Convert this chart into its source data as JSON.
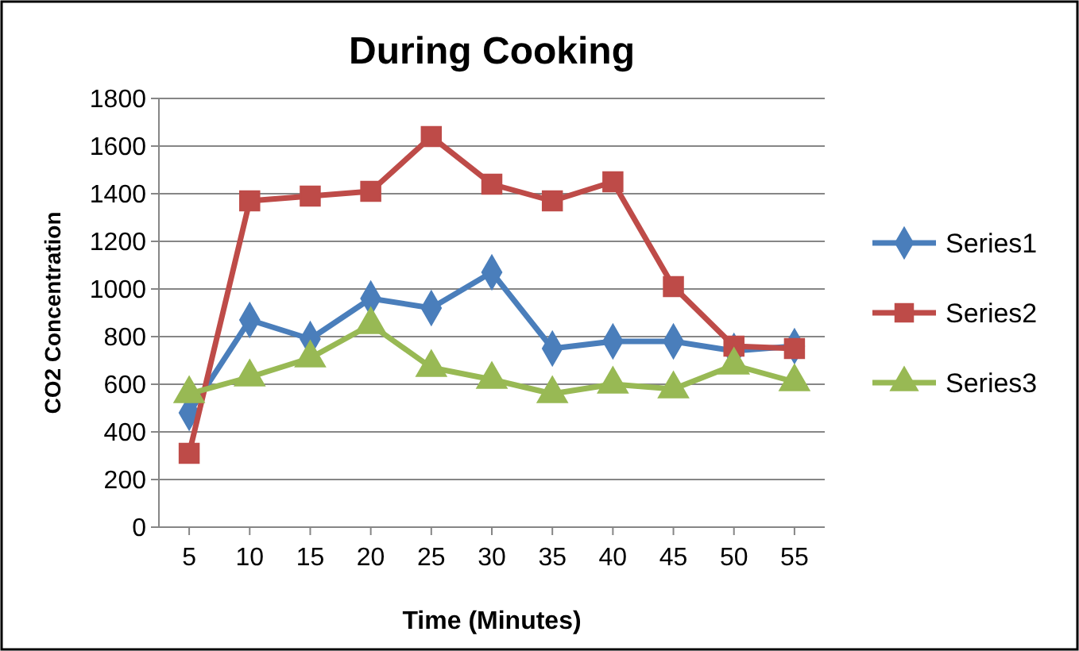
{
  "chart_data": {
    "type": "line",
    "title": "During Cooking",
    "xlabel": "Time (Minutes)",
    "ylabel": "CO2 Concentration",
    "categories": [
      "5",
      "10",
      "15",
      "20",
      "25",
      "30",
      "35",
      "40",
      "45",
      "50",
      "55"
    ],
    "series": [
      {
        "name": "Series1",
        "color": "#4a7ebb",
        "marker": "diamond",
        "values": [
          480,
          870,
          790,
          960,
          920,
          1070,
          750,
          780,
          780,
          740,
          760
        ]
      },
      {
        "name": "Series2",
        "color": "#be4b48",
        "marker": "square",
        "values": [
          310,
          1370,
          1390,
          1410,
          1640,
          1440,
          1370,
          1450,
          1010,
          760,
          750
        ]
      },
      {
        "name": "Series3",
        "color": "#98b954",
        "marker": "triangle",
        "values": [
          560,
          630,
          710,
          850,
          670,
          620,
          560,
          600,
          580,
          680,
          610
        ]
      }
    ],
    "ylim": [
      0,
      1800
    ],
    "yticks": [
      0,
      200,
      400,
      600,
      800,
      1000,
      1200,
      1400,
      1600,
      1800
    ],
    "grid": "y",
    "legend": "right"
  }
}
